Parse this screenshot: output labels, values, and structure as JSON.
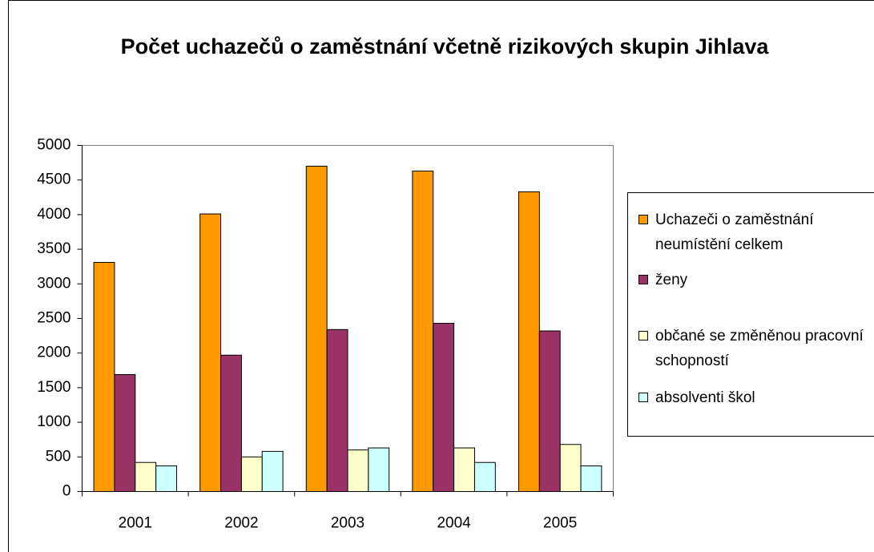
{
  "chart_data": {
    "type": "bar",
    "title": "Počet uchazečů o zaměstnání včetně rizikových skupin Jihlava",
    "categories": [
      "2001",
      "2002",
      "2003",
      "2004",
      "2005"
    ],
    "series": [
      {
        "name": "Uchazeči o zaměstnání neumístění celkem",
        "color": "#ff9900",
        "values": [
          3310,
          4010,
          4700,
          4630,
          4330
        ]
      },
      {
        "name": "ženy",
        "color": "#993366",
        "values": [
          1690,
          1970,
          2340,
          2430,
          2320
        ]
      },
      {
        "name": "občané se změněnou pracovní schopností",
        "color": "#ffffcc",
        "values": [
          420,
          500,
          600,
          630,
          680
        ]
      },
      {
        "name": "absolventi škol",
        "color": "#ccffff",
        "values": [
          370,
          580,
          630,
          420,
          370
        ]
      }
    ],
    "ylim": [
      0,
      5000
    ],
    "yticks": [
      0,
      500,
      1000,
      1500,
      2000,
      2500,
      3000,
      3500,
      4000,
      4500,
      5000
    ],
    "grid": false,
    "legend": "right"
  }
}
